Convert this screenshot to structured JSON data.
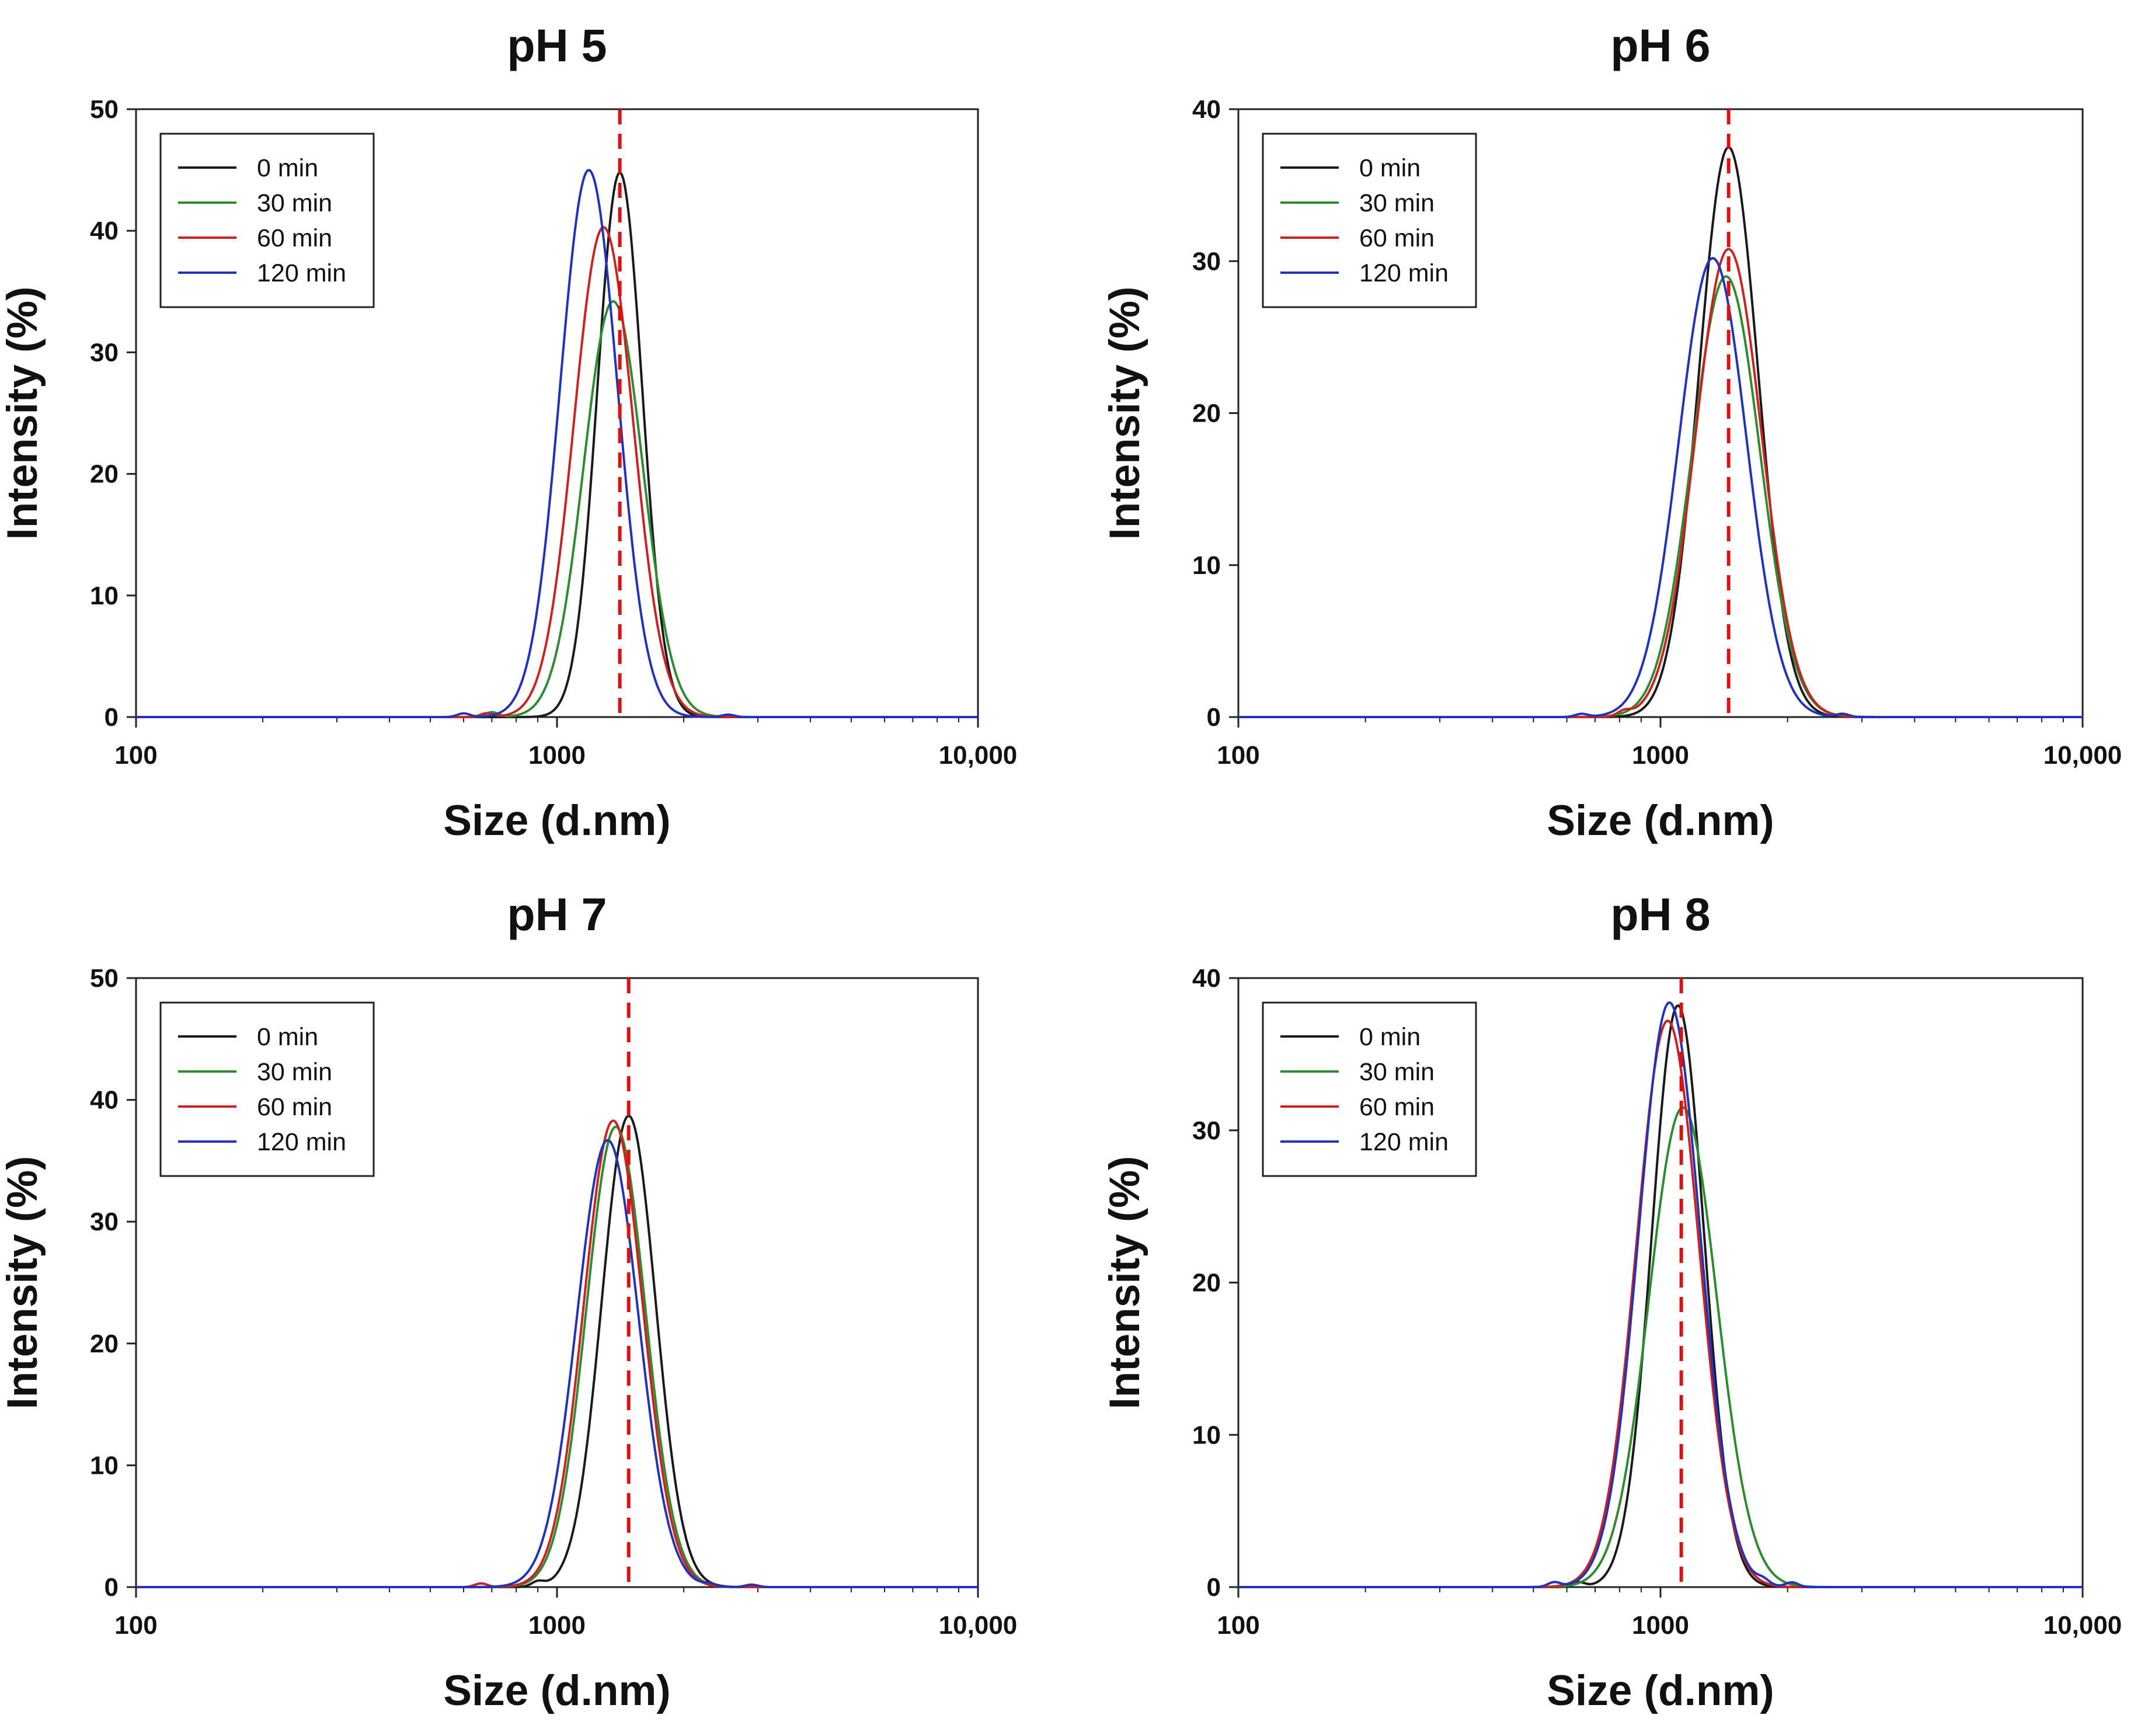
{
  "chart_data": [
    {
      "type": "line",
      "title": "pH 5",
      "xlabel": "Size (d.nm)",
      "ylabel": "Intensity (%)",
      "xscale": "log",
      "xlim": [
        100,
        10000
      ],
      "ylim": [
        0,
        50
      ],
      "xticks": [
        {
          "value": 100,
          "label": "100"
        },
        {
          "value": 1000,
          "label": "1000"
        },
        {
          "value": 10000,
          "label": "10,000"
        }
      ],
      "yticks": [
        0,
        10,
        20,
        30,
        40,
        50
      ],
      "reference_line_x": 1410,
      "legend": "top-left",
      "series": [
        {
          "name": "0 min",
          "color": "#1a1a1a",
          "peaks": [
            {
              "center": 1410,
              "height": 44.8,
              "width": 0.053
            }
          ]
        },
        {
          "name": "30 min",
          "color": "#2e8b2e",
          "peaks": [
            {
              "center": 1360,
              "height": 34.2,
              "width": 0.07
            },
            {
              "center": 700,
              "height": 0.4,
              "width": 0.015
            }
          ]
        },
        {
          "name": "60 min",
          "color": "#cc2222",
          "peaks": [
            {
              "center": 1290,
              "height": 40.3,
              "width": 0.07
            },
            {
              "center": 680,
              "height": 0.3,
              "width": 0.015
            }
          ]
        },
        {
          "name": "120 min",
          "color": "#2233bb",
          "peaks": [
            {
              "center": 1190,
              "height": 45.0,
              "width": 0.068
            },
            {
              "center": 600,
              "height": 0.3,
              "width": 0.015
            },
            {
              "center": 2550,
              "height": 0.2,
              "width": 0.015
            }
          ]
        }
      ]
    },
    {
      "type": "line",
      "title": "pH 6",
      "xlabel": "Size (d.nm)",
      "ylabel": "Intensity (%)",
      "xscale": "log",
      "xlim": [
        100,
        10000
      ],
      "ylim": [
        0,
        40
      ],
      "xticks": [
        {
          "value": 100,
          "label": "100"
        },
        {
          "value": 1000,
          "label": "1000"
        },
        {
          "value": 10000,
          "label": "10,000"
        }
      ],
      "yticks": [
        0,
        10,
        20,
        30,
        40
      ],
      "reference_line_x": 1450,
      "legend": "top-left",
      "series": [
        {
          "name": "0 min",
          "color": "#1a1a1a",
          "peaks": [
            {
              "center": 1450,
              "height": 37.5,
              "width": 0.07
            }
          ]
        },
        {
          "name": "30 min",
          "color": "#2e8b2e",
          "peaks": [
            {
              "center": 1430,
              "height": 29.0,
              "width": 0.08
            }
          ]
        },
        {
          "name": "60 min",
          "color": "#cc2222",
          "peaks": [
            {
              "center": 1450,
              "height": 30.8,
              "width": 0.078
            },
            {
              "center": 820,
              "height": 0.3,
              "width": 0.015
            }
          ]
        },
        {
          "name": "120 min",
          "color": "#2233bb",
          "peaks": [
            {
              "center": 1330,
              "height": 30.2,
              "width": 0.08
            },
            {
              "center": 650,
              "height": 0.2,
              "width": 0.015
            },
            {
              "center": 2700,
              "height": 0.2,
              "width": 0.015
            }
          ]
        }
      ]
    },
    {
      "type": "line",
      "title": "pH 7",
      "xlabel": "Size (d.nm)",
      "ylabel": "Intensity (%)",
      "xscale": "log",
      "xlim": [
        100,
        10000
      ],
      "ylim": [
        0,
        50
      ],
      "xticks": [
        {
          "value": 100,
          "label": "100"
        },
        {
          "value": 1000,
          "label": "1000"
        },
        {
          "value": 10000,
          "label": "10,000"
        }
      ],
      "yticks": [
        0,
        10,
        20,
        30,
        40,
        50
      ],
      "reference_line_x": 1480,
      "legend": "top-left",
      "series": [
        {
          "name": "0 min",
          "color": "#1a1a1a",
          "peaks": [
            {
              "center": 1480,
              "height": 38.7,
              "width": 0.064
            },
            {
              "center": 900,
              "height": 0.4,
              "width": 0.015
            }
          ]
        },
        {
          "name": "30 min",
          "color": "#2e8b2e",
          "peaks": [
            {
              "center": 1380,
              "height": 37.8,
              "width": 0.07
            }
          ]
        },
        {
          "name": "60 min",
          "color": "#cc2222",
          "peaks": [
            {
              "center": 1360,
              "height": 38.3,
              "width": 0.07
            },
            {
              "center": 660,
              "height": 0.3,
              "width": 0.015
            }
          ]
        },
        {
          "name": "120 min",
          "color": "#2233bb",
          "peaks": [
            {
              "center": 1320,
              "height": 36.7,
              "width": 0.073
            },
            {
              "center": 2300,
              "height": 0.2,
              "width": 0.015
            },
            {
              "center": 2900,
              "height": 0.2,
              "width": 0.015
            }
          ]
        }
      ]
    },
    {
      "type": "line",
      "title": "pH 8",
      "xlabel": "Size (d.nm)",
      "ylabel": "Intensity (%)",
      "xscale": "log",
      "xlim": [
        100,
        10000
      ],
      "ylim": [
        0,
        40
      ],
      "xticks": [
        {
          "value": 100,
          "label": "100"
        },
        {
          "value": 1000,
          "label": "1000"
        },
        {
          "value": 10000,
          "label": "10,000"
        }
      ],
      "yticks": [
        0,
        10,
        20,
        30,
        40
      ],
      "reference_line_x": 1120,
      "legend": "top-left",
      "series": [
        {
          "name": "0 min",
          "color": "#1a1a1a",
          "peaks": [
            {
              "center": 1100,
              "height": 38.2,
              "width": 0.062
            },
            {
              "center": 640,
              "height": 0.3,
              "width": 0.015
            }
          ]
        },
        {
          "name": "30 min",
          "color": "#2e8b2e",
          "peaks": [
            {
              "center": 1130,
              "height": 31.5,
              "width": 0.08
            }
          ]
        },
        {
          "name": "60 min",
          "color": "#cc2222",
          "peaks": [
            {
              "center": 1040,
              "height": 37.2,
              "width": 0.074
            }
          ]
        },
        {
          "name": "120 min",
          "color": "#2233bb",
          "peaks": [
            {
              "center": 1050,
              "height": 38.4,
              "width": 0.073
            },
            {
              "center": 560,
              "height": 0.3,
              "width": 0.015
            },
            {
              "center": 1750,
              "height": 0.3,
              "width": 0.015
            },
            {
              "center": 2050,
              "height": 0.3,
              "width": 0.015
            }
          ]
        }
      ]
    }
  ]
}
